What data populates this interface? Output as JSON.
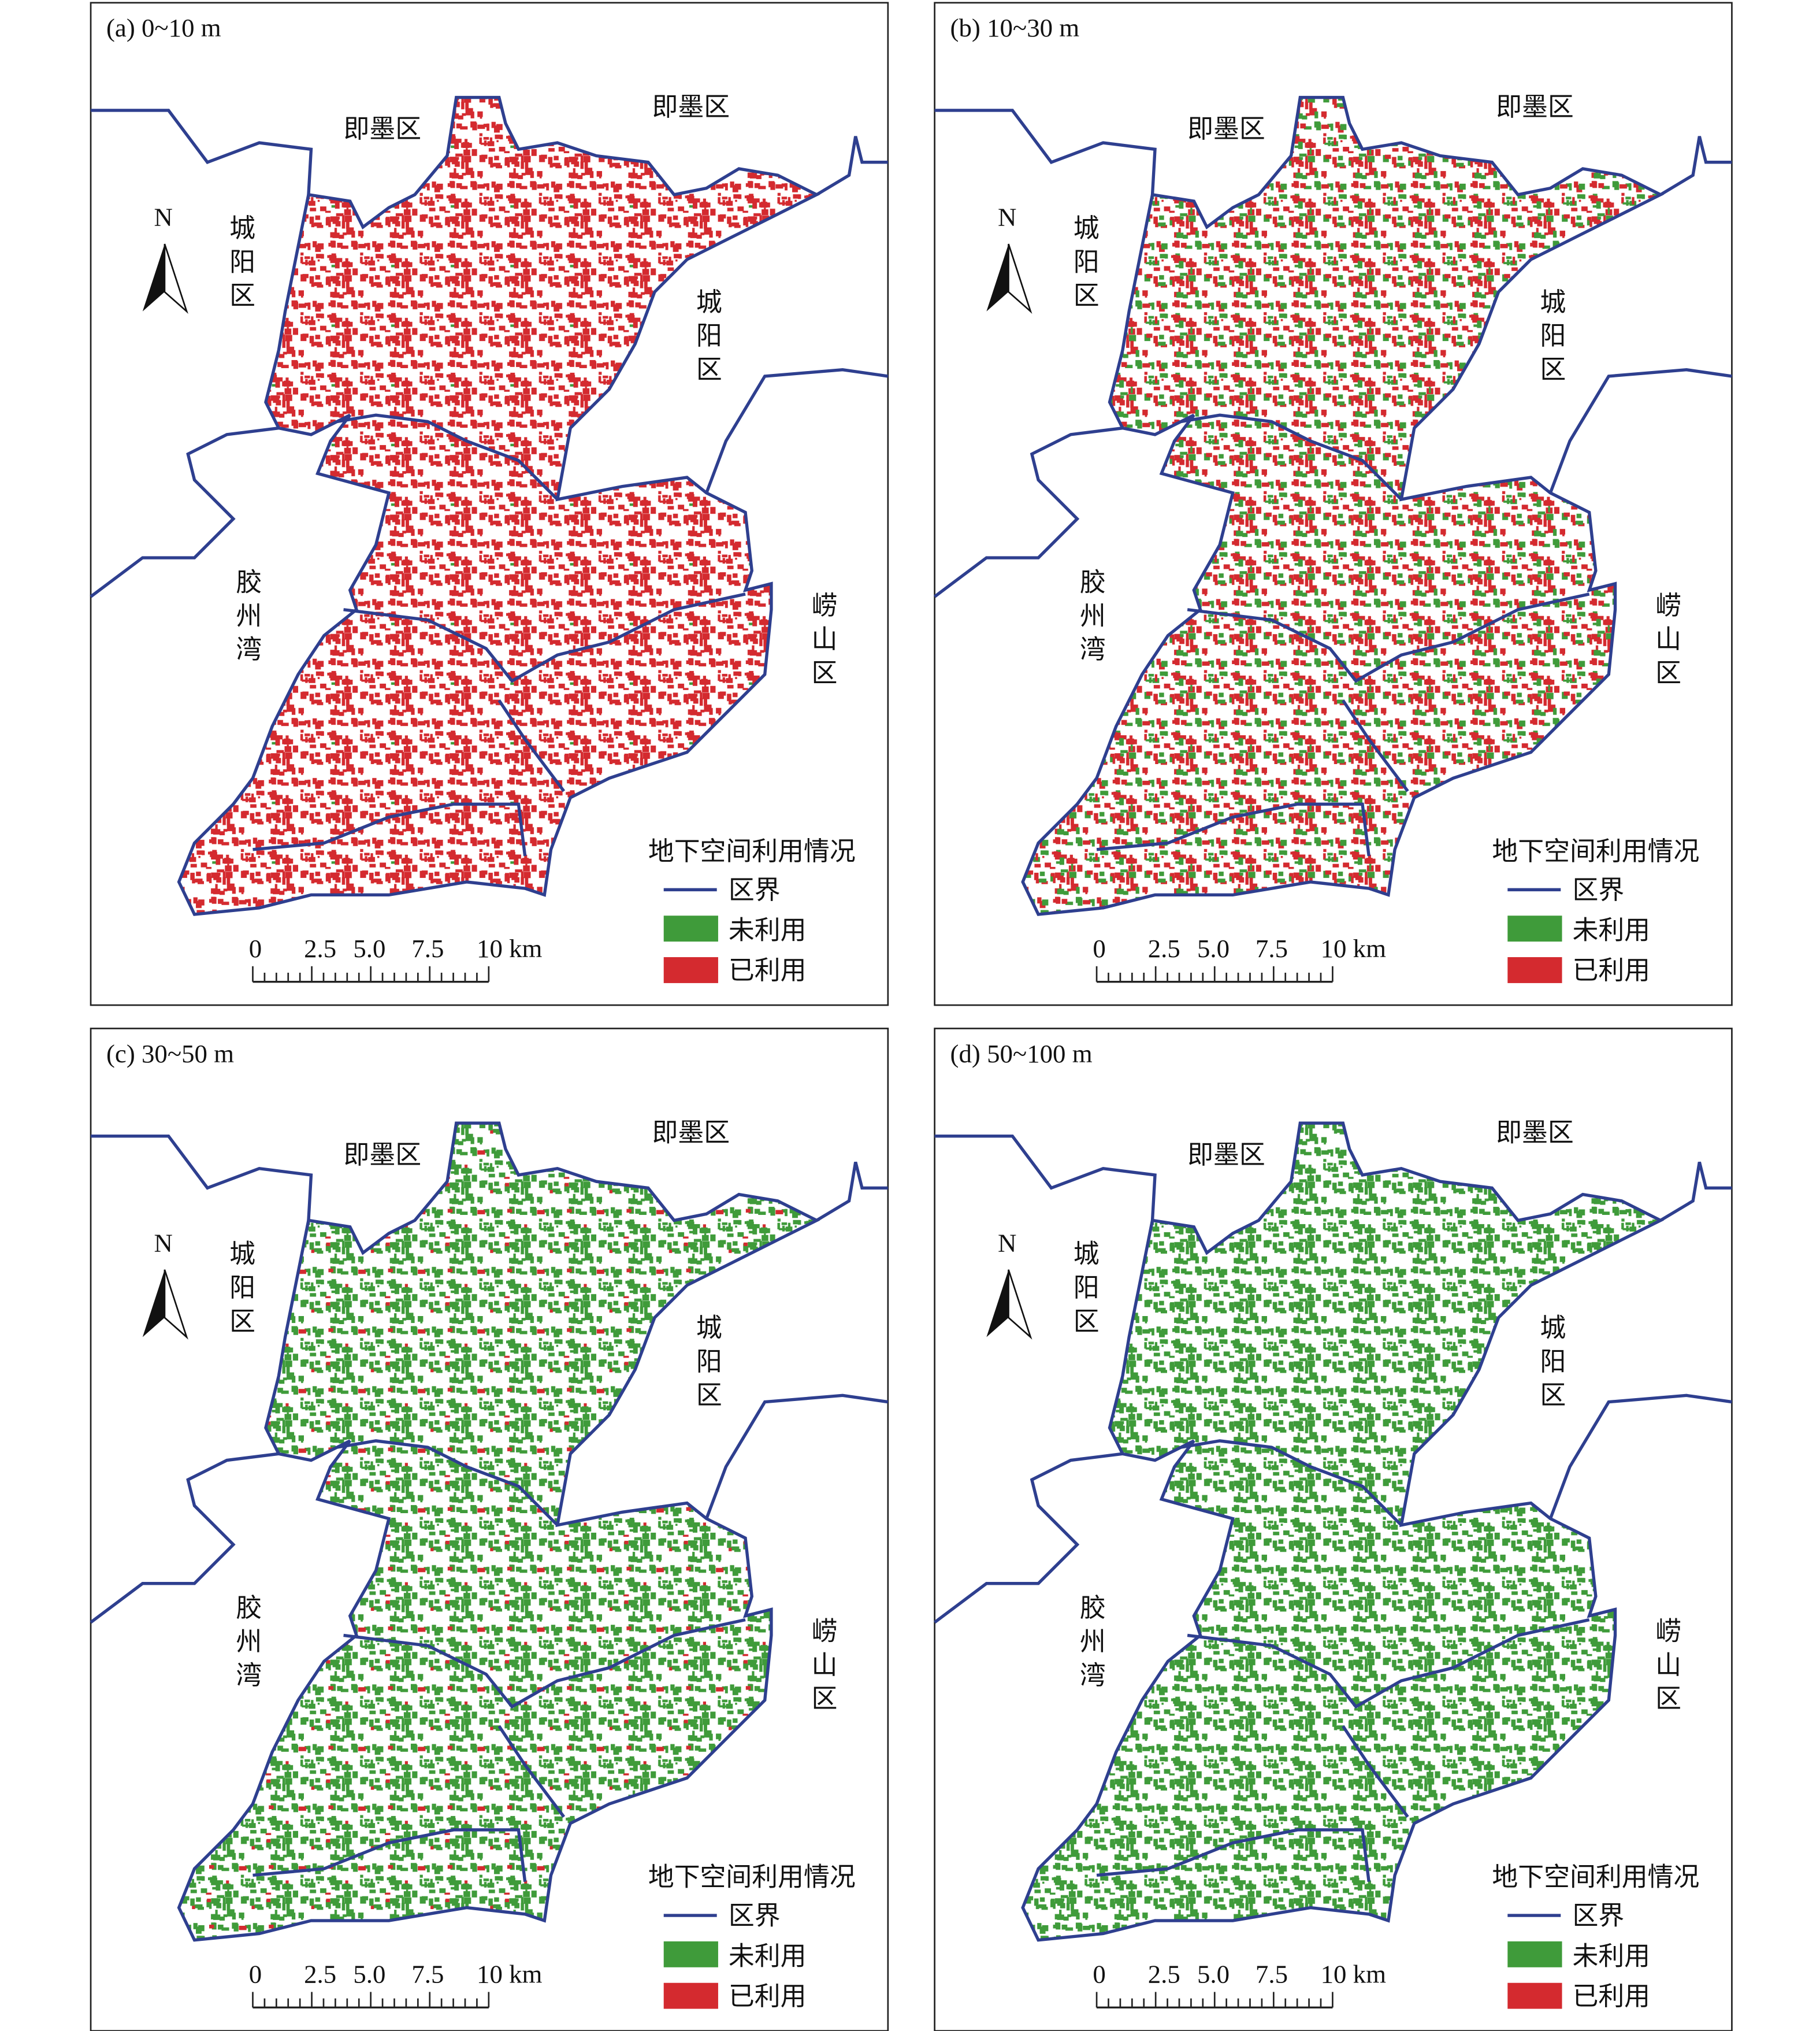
{
  "panels": [
    {
      "title": "(a) 0~10 m"
    },
    {
      "title": "(b) 10~30 m"
    },
    {
      "title": "(c) 30~50 m"
    },
    {
      "title": "(d) 50~100 m"
    }
  ],
  "labels": {
    "jimo": "即墨区",
    "chengyang": "城阳区",
    "jiaozhou": "胶州湾",
    "laoshan": "崂山区",
    "north": "N"
  },
  "legend": {
    "title": "地下空间利用情况",
    "items": [
      {
        "name": "区界",
        "color": "#2e3f8f"
      },
      {
        "name": "未利用",
        "color": "#3f9b3a"
      },
      {
        "name": "已利用",
        "color": "#d42a2f"
      }
    ]
  },
  "scale": {
    "labels": [
      "0",
      "2.5",
      "5.0",
      "7.5",
      "10 km"
    ]
  }
}
